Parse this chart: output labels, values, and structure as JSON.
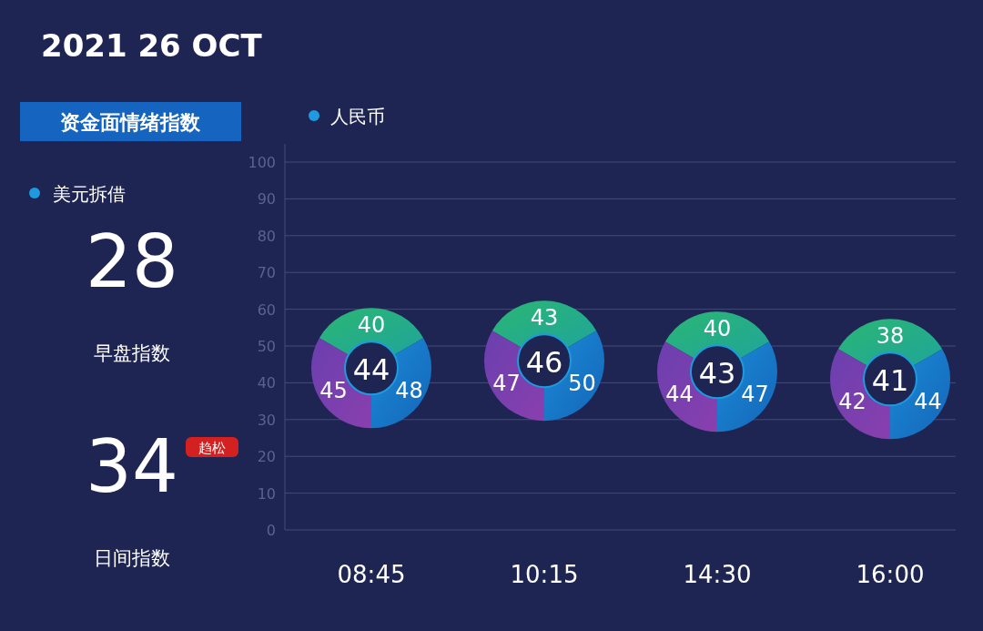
{
  "chart_data": [
    {
      "type": "other",
      "title": "2021 26 OCT",
      "subtitle": "资金面情绪指数",
      "legend_title": "美元拆借",
      "categories": [
        "早盘指数",
        "日间指数"
      ],
      "values": [
        28,
        34
      ],
      "data_labels": true,
      "annotations": [
        "趋松"
      ]
    },
    {
      "type": "scatter",
      "categories": [
        "08:45",
        "10:15",
        "14:30",
        "16:00"
      ],
      "series": [
        {
          "name": "人民币",
          "color": "#1e9be0",
          "values": [
            44,
            46,
            43,
            41
          ]
        }
      ],
      "ylim": [
        0,
        100
      ],
      "yticks": [
        0,
        10,
        20,
        30,
        40,
        50,
        60,
        70,
        80,
        90,
        100
      ],
      "grid": "y",
      "legend": "top left",
      "marker": "circle",
      "data_labels": true,
      "annotations": [
        {
          "text": "40",
          "x": "08:45",
          "y": 44
        },
        {
          "text": "48",
          "x": "08:45",
          "y": 44
        },
        {
          "text": "45",
          "x": "08:45",
          "y": 44
        },
        {
          "text": "43",
          "x": "10:15",
          "y": 46
        },
        {
          "text": "50",
          "x": "10:15",
          "y": 46
        },
        {
          "text": "47",
          "x": "10:15",
          "y": 46
        },
        {
          "text": "40",
          "x": "14:30",
          "y": 43
        },
        {
          "text": "47",
          "x": "14:30",
          "y": 43
        },
        {
          "text": "44",
          "x": "14:30",
          "y": 43
        },
        {
          "text": "38",
          "x": "16:00",
          "y": 41
        },
        {
          "text": "44",
          "x": "16:00",
          "y": 41
        },
        {
          "text": "42",
          "x": "16:00",
          "y": 41
        }
      ]
    }
  ]
}
